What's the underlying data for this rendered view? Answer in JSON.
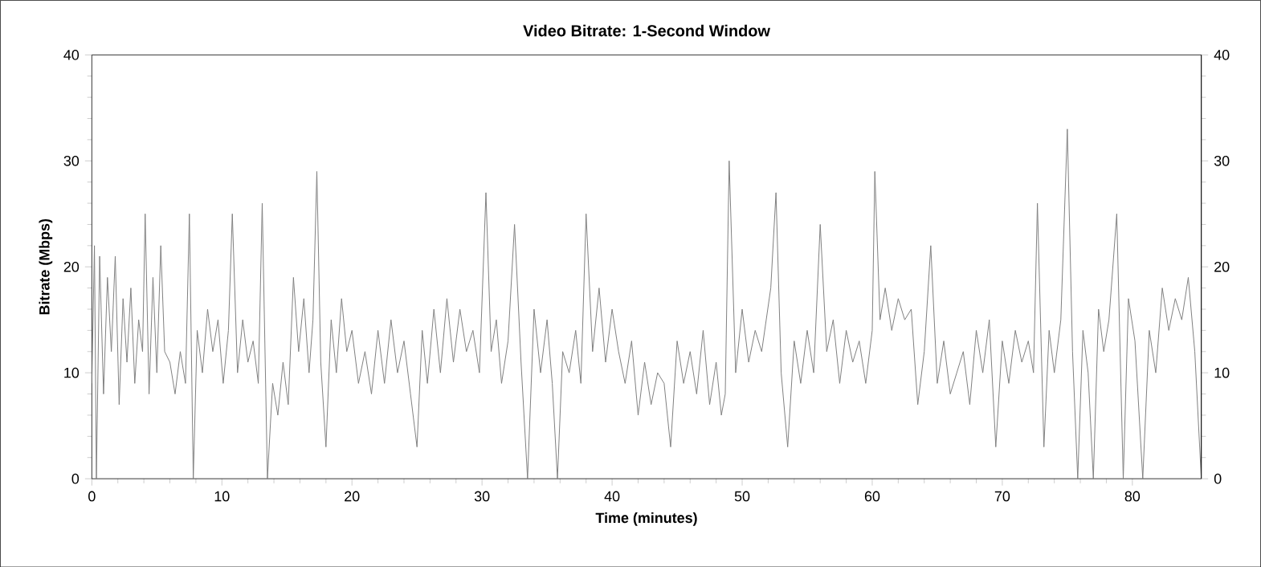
{
  "chart_data": {
    "type": "line",
    "title": "Video Bitrate: 1-Second Window",
    "xlabel": "Time (minutes)",
    "ylabel": "Bitrate (Mbps)",
    "x": [
      0,
      0.2,
      0.35,
      0.6,
      0.9,
      1.2,
      1.5,
      1.8,
      2.1,
      2.4,
      2.7,
      3.0,
      3.3,
      3.6,
      3.9,
      4.1,
      4.4,
      4.7,
      5.0,
      5.3,
      5.6,
      6.0,
      6.4,
      6.8,
      7.2,
      7.5,
      7.8,
      8.1,
      8.5,
      8.9,
      9.3,
      9.7,
      10.1,
      10.5,
      10.8,
      11.2,
      11.6,
      12.0,
      12.4,
      12.8,
      13.1,
      13.5,
      13.9,
      14.3,
      14.7,
      15.1,
      15.5,
      15.9,
      16.3,
      16.7,
      17.0,
      17.3,
      17.6,
      18.0,
      18.4,
      18.8,
      19.2,
      19.6,
      20.0,
      20.5,
      21.0,
      21.5,
      22.0,
      22.5,
      23.0,
      23.5,
      24.0,
      24.5,
      25.0,
      25.4,
      25.8,
      26.3,
      26.8,
      27.3,
      27.8,
      28.3,
      28.8,
      29.3,
      29.8,
      30.3,
      30.7,
      31.1,
      31.5,
      32.0,
      32.5,
      33.0,
      33.5,
      34.0,
      34.5,
      35.0,
      35.4,
      35.8,
      36.2,
      36.7,
      37.2,
      37.6,
      38.0,
      38.5,
      39.0,
      39.5,
      40.0,
      40.5,
      41.0,
      41.5,
      42.0,
      42.5,
      43.0,
      43.5,
      44.0,
      44.5,
      45.0,
      45.5,
      46.0,
      46.5,
      47.0,
      47.5,
      48.0,
      48.4,
      48.7,
      49.0,
      49.5,
      50.0,
      50.5,
      51.0,
      51.5,
      52.2,
      52.6,
      53.0,
      53.5,
      54.0,
      54.5,
      55.0,
      55.5,
      56.0,
      56.5,
      57.0,
      57.5,
      58.0,
      58.5,
      59.0,
      59.5,
      60.0,
      60.2,
      60.6,
      61.0,
      61.5,
      62.0,
      62.5,
      63.0,
      63.5,
      64.0,
      64.5,
      65.0,
      65.5,
      66.0,
      66.5,
      67.0,
      67.5,
      68.0,
      68.5,
      69.0,
      69.5,
      70.0,
      70.5,
      71.0,
      71.5,
      72.0,
      72.4,
      72.7,
      73.2,
      73.6,
      74.0,
      74.5,
      75.0,
      75.4,
      75.8,
      76.2,
      76.6,
      77.0,
      77.4,
      77.8,
      78.2,
      78.8,
      79.3,
      79.7,
      80.2,
      80.8,
      81.3,
      81.8,
      82.3,
      82.8,
      83.3,
      83.8,
      84.3,
      84.8,
      85.3
    ],
    "series": [
      {
        "color": "#808080",
        "values": [
          9,
          22,
          0,
          21,
          8,
          19,
          12,
          21,
          7,
          17,
          11,
          18,
          9,
          15,
          12,
          25,
          8,
          19,
          10,
          22,
          12,
          11,
          8,
          12,
          9,
          25,
          0,
          14,
          10,
          16,
          12,
          15,
          9,
          14,
          25,
          10,
          15,
          11,
          13,
          9,
          26,
          0,
          9,
          6,
          11,
          7,
          19,
          12,
          17,
          10,
          15,
          29,
          11,
          3,
          15,
          10,
          17,
          12,
          14,
          9,
          12,
          8,
          14,
          9,
          15,
          10,
          13,
          8,
          3,
          14,
          9,
          16,
          10,
          17,
          11,
          16,
          12,
          14,
          10,
          27,
          12,
          15,
          9,
          13,
          24,
          11,
          0,
          16,
          10,
          15,
          9,
          0,
          12,
          10,
          14,
          9,
          25,
          12,
          18,
          11,
          16,
          12,
          9,
          13,
          6,
          11,
          7,
          10,
          9,
          3,
          13,
          9,
          12,
          8,
          14,
          7,
          11,
          6,
          8,
          30,
          10,
          16,
          11,
          14,
          12,
          18,
          27,
          10,
          3,
          13,
          9,
          14,
          10,
          24,
          12,
          15,
          9,
          14,
          11,
          13,
          9,
          14,
          29,
          15,
          18,
          14,
          17,
          15,
          16,
          7,
          12,
          22,
          9,
          13,
          8,
          10,
          12,
          7,
          14,
          10,
          15,
          3,
          13,
          9,
          14,
          11,
          13,
          10,
          26,
          3,
          14,
          10,
          15,
          33,
          12,
          0,
          14,
          10,
          0,
          16,
          12,
          15,
          25,
          0,
          17,
          13,
          0,
          14,
          10,
          18,
          14,
          17,
          15,
          19,
          12,
          0
        ]
      }
    ],
    "xlim": [
      0,
      85.3
    ],
    "xticks": [
      0,
      10,
      20,
      30,
      40,
      50,
      60,
      70,
      80
    ],
    "ylim": [
      0,
      40
    ],
    "yticks": [
      0,
      10,
      20,
      30,
      40
    ],
    "y2lim": [
      0,
      40
    ],
    "y2ticks": [
      0,
      10,
      20,
      30,
      40
    ],
    "line_style": "solid",
    "marker": "none",
    "grid": false
  }
}
